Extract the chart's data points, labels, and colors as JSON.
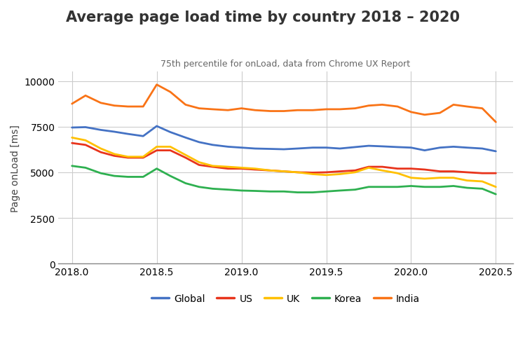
{
  "title": "Average page load time by country 2018 – 2020",
  "subtitle": "75th percentile for onLoad, data from Chrome UX Report",
  "ylabel": "Page onLoad [ms]",
  "xlim": [
    2017.92,
    2020.6
  ],
  "ylim": [
    0,
    10500
  ],
  "yticks": [
    0,
    2500,
    5000,
    7500,
    10000
  ],
  "xticks": [
    2018.0,
    2018.5,
    2019.0,
    2019.5,
    2020.0,
    2020.5
  ],
  "background_color": "#ffffff",
  "grid_color": "#cccccc",
  "series": {
    "Global": {
      "color": "#4472c4",
      "x": [
        2018.0,
        2018.08,
        2018.17,
        2018.25,
        2018.33,
        2018.42,
        2018.5,
        2018.58,
        2018.67,
        2018.75,
        2018.83,
        2018.92,
        2019.0,
        2019.08,
        2019.17,
        2019.25,
        2019.33,
        2019.42,
        2019.5,
        2019.58,
        2019.67,
        2019.75,
        2019.83,
        2019.92,
        2020.0,
        2020.08,
        2020.17,
        2020.25,
        2020.33,
        2020.42,
        2020.5
      ],
      "y": [
        7450,
        7470,
        7320,
        7220,
        7100,
        6980,
        7530,
        7200,
        6900,
        6650,
        6500,
        6400,
        6350,
        6300,
        6280,
        6260,
        6300,
        6350,
        6350,
        6300,
        6380,
        6450,
        6420,
        6380,
        6350,
        6200,
        6350,
        6400,
        6350,
        6300,
        6150
      ]
    },
    "US": {
      "color": "#e8341c",
      "x": [
        2018.0,
        2018.08,
        2018.17,
        2018.25,
        2018.33,
        2018.42,
        2018.5,
        2018.58,
        2018.67,
        2018.75,
        2018.83,
        2018.92,
        2019.0,
        2019.08,
        2019.17,
        2019.25,
        2019.33,
        2019.42,
        2019.5,
        2019.58,
        2019.67,
        2019.75,
        2019.83,
        2019.92,
        2020.0,
        2020.08,
        2020.17,
        2020.25,
        2020.33,
        2020.42,
        2020.5
      ],
      "y": [
        6600,
        6500,
        6100,
        5900,
        5800,
        5800,
        6200,
        6200,
        5800,
        5400,
        5300,
        5200,
        5200,
        5150,
        5100,
        5050,
        5000,
        4980,
        5000,
        5050,
        5100,
        5300,
        5300,
        5200,
        5200,
        5150,
        5050,
        5050,
        5000,
        4950,
        4950
      ]
    },
    "UK": {
      "color": "#ffc000",
      "x": [
        2018.0,
        2018.08,
        2018.17,
        2018.25,
        2018.33,
        2018.42,
        2018.5,
        2018.58,
        2018.67,
        2018.75,
        2018.83,
        2018.92,
        2019.0,
        2019.08,
        2019.17,
        2019.25,
        2019.33,
        2019.42,
        2019.5,
        2019.58,
        2019.67,
        2019.75,
        2019.83,
        2019.92,
        2020.0,
        2020.08,
        2020.17,
        2020.25,
        2020.33,
        2020.42,
        2020.5
      ],
      "y": [
        6900,
        6750,
        6300,
        6000,
        5850,
        5850,
        6400,
        6400,
        5950,
        5550,
        5350,
        5300,
        5250,
        5200,
        5100,
        5050,
        5000,
        4900,
        4850,
        4900,
        5000,
        5250,
        5100,
        4950,
        4700,
        4650,
        4700,
        4700,
        4550,
        4500,
        4200
      ]
    },
    "Korea": {
      "color": "#2eb050",
      "x": [
        2018.0,
        2018.08,
        2018.17,
        2018.25,
        2018.33,
        2018.42,
        2018.5,
        2018.58,
        2018.67,
        2018.75,
        2018.83,
        2018.92,
        2019.0,
        2019.08,
        2019.17,
        2019.25,
        2019.33,
        2019.42,
        2019.5,
        2019.58,
        2019.67,
        2019.75,
        2019.83,
        2019.92,
        2020.0,
        2020.08,
        2020.17,
        2020.25,
        2020.33,
        2020.42,
        2020.5
      ],
      "y": [
        5350,
        5250,
        4950,
        4800,
        4750,
        4750,
        5200,
        4800,
        4400,
        4200,
        4100,
        4050,
        4000,
        3980,
        3950,
        3950,
        3900,
        3900,
        3950,
        4000,
        4050,
        4200,
        4200,
        4200,
        4250,
        4200,
        4200,
        4250,
        4150,
        4100,
        3800
      ]
    },
    "India": {
      "color": "#f97316",
      "x": [
        2018.0,
        2018.08,
        2018.17,
        2018.25,
        2018.33,
        2018.42,
        2018.5,
        2018.58,
        2018.67,
        2018.75,
        2018.83,
        2018.92,
        2019.0,
        2019.08,
        2019.17,
        2019.25,
        2019.33,
        2019.42,
        2019.5,
        2019.58,
        2019.67,
        2019.75,
        2019.83,
        2019.92,
        2020.0,
        2020.08,
        2020.17,
        2020.25,
        2020.33,
        2020.42,
        2020.5
      ],
      "y": [
        8750,
        9200,
        8800,
        8650,
        8600,
        8600,
        9800,
        9400,
        8700,
        8500,
        8450,
        8400,
        8500,
        8400,
        8350,
        8350,
        8400,
        8400,
        8450,
        8450,
        8500,
        8650,
        8700,
        8600,
        8300,
        8150,
        8250,
        8700,
        8600,
        8500,
        7750
      ]
    }
  },
  "legend_order": [
    "Global",
    "US",
    "UK",
    "Korea",
    "India"
  ],
  "title_fontsize": 15,
  "subtitle_fontsize": 9,
  "axis_label_fontsize": 10,
  "tick_fontsize": 10,
  "legend_fontsize": 10,
  "line_width": 2.0
}
